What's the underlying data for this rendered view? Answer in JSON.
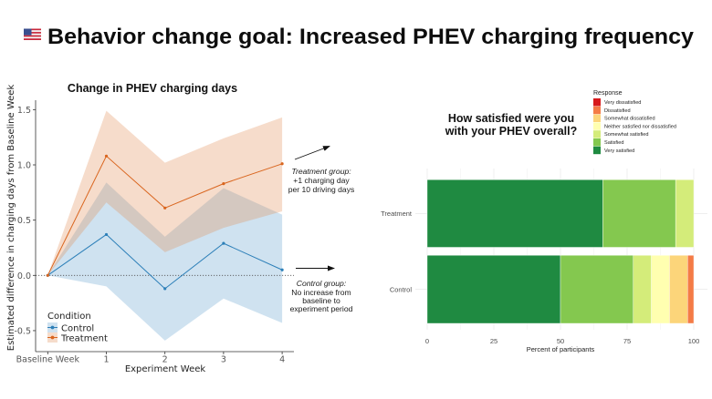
{
  "page": {
    "title": "Behavior change goal: Increased PHEV charging frequency",
    "flag_icon": "us-flag-icon"
  },
  "annotations": {
    "treatment": {
      "heading": "Treatment group:",
      "lines": [
        "+1 charging day",
        "per 10 driving days"
      ]
    },
    "control": {
      "heading": "Control group:",
      "lines": [
        "No increase from",
        "baseline to",
        "experiment period"
      ]
    }
  },
  "chart_data": [
    {
      "type": "line",
      "title": "Change in PHEV charging days",
      "xlabel": "Experiment Week",
      "ylabel": "Estimated difference in charging days from Baseline Week",
      "categories": [
        "Baseline Week",
        "1",
        "2",
        "3",
        "4"
      ],
      "yticks": [
        -0.5,
        0.0,
        0.5,
        1.0,
        1.5
      ],
      "ytick_labels": [
        "-0.5",
        "0.0",
        "0.5",
        "1.0",
        "1.5"
      ],
      "ylim": [
        -0.69,
        1.59
      ],
      "reference_line": 0,
      "grid": false,
      "legend": {
        "title": "Condition",
        "position": "bottom-left"
      },
      "series": [
        {
          "name": "Control",
          "color": "#2c7fb8",
          "band_color": "#5f9ecd",
          "values": [
            0,
            0.37,
            -0.12,
            0.29,
            0.05
          ],
          "lower": [
            0,
            -0.1,
            -0.59,
            -0.21,
            -0.43
          ],
          "upper": [
            0,
            0.84,
            0.35,
            0.79,
            0.55
          ]
        },
        {
          "name": "Treatment",
          "color": "#d9651e",
          "band_color": "#e18a52",
          "values": [
            0,
            1.08,
            0.61,
            0.83,
            1.01
          ],
          "lower": [
            0,
            0.66,
            0.21,
            0.43,
            0.58
          ],
          "upper": [
            0,
            1.49,
            1.02,
            1.24,
            1.43
          ]
        }
      ]
    },
    {
      "type": "bar",
      "orientation": "horizontal",
      "stacked": true,
      "title": "How satisfied were you with your PHEV overall?",
      "title_lines": [
        "How satisfied were you",
        "with your PHEV overall?"
      ],
      "xlabel": "Percent of participants",
      "ylabel": "",
      "categories": [
        "Treatment",
        "Control"
      ],
      "xticks": [
        0,
        25,
        50,
        75,
        100
      ],
      "xlim": [
        0,
        100
      ],
      "grid": true,
      "legend": {
        "title": "Response",
        "position": "top-right"
      },
      "series": [
        {
          "name": "Very dissatisfied",
          "color": "#d7191c",
          "values": [
            0,
            0
          ]
        },
        {
          "name": "Dissatisfied",
          "color": "#f47b46",
          "values": [
            0,
            2.3
          ]
        },
        {
          "name": "Somewhat dissatisfied",
          "color": "#fcd57a",
          "values": [
            0,
            6.8
          ]
        },
        {
          "name": "Neither satisfied nor dissatisfied",
          "color": "#ffffb0",
          "values": [
            0,
            6.8
          ]
        },
        {
          "name": "Somewhat satisfied",
          "color": "#d4ec7a",
          "values": [
            6.8,
            6.8
          ]
        },
        {
          "name": "Satisfied",
          "color": "#84c84f",
          "values": [
            27.3,
            27.3
          ]
        },
        {
          "name": "Very satisfied",
          "color": "#1f8a41",
          "values": [
            65.9,
            50.0
          ]
        }
      ]
    }
  ]
}
